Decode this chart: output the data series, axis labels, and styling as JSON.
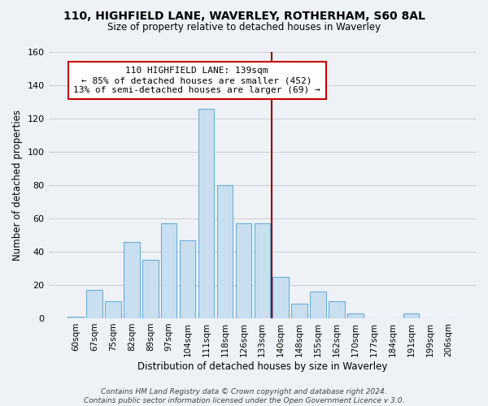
{
  "title1": "110, HIGHFIELD LANE, WAVERLEY, ROTHERHAM, S60 8AL",
  "title2": "Size of property relative to detached houses in Waverley",
  "xlabel": "Distribution of detached houses by size in Waverley",
  "ylabel": "Number of detached properties",
  "bar_labels": [
    "60sqm",
    "67sqm",
    "75sqm",
    "82sqm",
    "89sqm",
    "97sqm",
    "104sqm",
    "111sqm",
    "118sqm",
    "126sqm",
    "133sqm",
    "140sqm",
    "148sqm",
    "155sqm",
    "162sqm",
    "170sqm",
    "177sqm",
    "184sqm",
    "191sqm",
    "199sqm",
    "206sqm"
  ],
  "bar_values": [
    1,
    17,
    10,
    46,
    35,
    57,
    47,
    126,
    80,
    57,
    57,
    25,
    9,
    16,
    10,
    3,
    0,
    0,
    3,
    0,
    0
  ],
  "bar_color": "#c9dff0",
  "bar_edge_color": "#6aaed6",
  "vline_x_index": 11,
  "vline_color": "#8b0000",
  "annotation_title": "110 HIGHFIELD LANE: 139sqm",
  "annotation_line1": "← 85% of detached houses are smaller (452)",
  "annotation_line2": "13% of semi-detached houses are larger (69) →",
  "annotation_box_color": "#ffffff",
  "annotation_box_edge": "#cc0000",
  "footer1": "Contains HM Land Registry data © Crown copyright and database right 2024.",
  "footer2": "Contains public sector information licensed under the Open Government Licence v 3.0.",
  "ylim": [
    0,
    160
  ],
  "yticks": [
    0,
    20,
    40,
    60,
    80,
    100,
    120,
    140,
    160
  ],
  "grid_color": "#cccccc",
  "background_color": "#eef2f7",
  "plot_bg_color": "#eef2f7"
}
